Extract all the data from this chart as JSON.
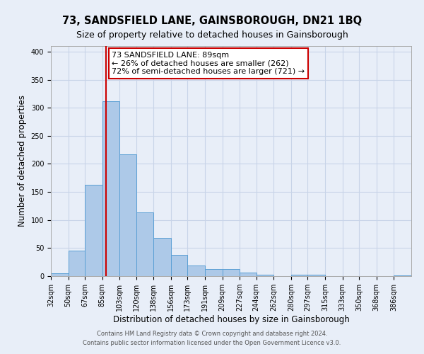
{
  "title": "73, SANDSFIELD LANE, GAINSBOROUGH, DN21 1BQ",
  "subtitle": "Size of property relative to detached houses in Gainsborough",
  "xlabel": "Distribution of detached houses by size in Gainsborough",
  "ylabel": "Number of detached properties",
  "bin_labels": [
    "32sqm",
    "50sqm",
    "67sqm",
    "85sqm",
    "103sqm",
    "120sqm",
    "138sqm",
    "156sqm",
    "173sqm",
    "191sqm",
    "209sqm",
    "227sqm",
    "244sqm",
    "262sqm",
    "280sqm",
    "297sqm",
    "315sqm",
    "333sqm",
    "350sqm",
    "368sqm",
    "386sqm"
  ],
  "bin_edges": [
    32,
    50,
    67,
    85,
    103,
    120,
    138,
    156,
    173,
    191,
    209,
    227,
    244,
    262,
    280,
    297,
    315,
    333,
    350,
    368,
    386,
    404
  ],
  "bar_heights": [
    5,
    46,
    163,
    312,
    217,
    114,
    68,
    38,
    19,
    13,
    13,
    6,
    2,
    0,
    2,
    2,
    0,
    0,
    0,
    0,
    1
  ],
  "bar_color": "#adc9e8",
  "bar_edge_color": "#5a9fd4",
  "property_size": 89,
  "red_line_color": "#cc0000",
  "annotation_line1": "73 SANDSFIELD LANE: 89sqm",
  "annotation_line2": "← 26% of detached houses are smaller (262)",
  "annotation_line3": "72% of semi-detached houses are larger (721) →",
  "annotation_box_color": "#ffffff",
  "annotation_box_edge_color": "#cc0000",
  "ylim": [
    0,
    410
  ],
  "yticks": [
    0,
    50,
    100,
    150,
    200,
    250,
    300,
    350,
    400
  ],
  "grid_color": "#c8d4e8",
  "background_color": "#e8eef8",
  "footer_line1": "Contains HM Land Registry data © Crown copyright and database right 2024.",
  "footer_line2": "Contains public sector information licensed under the Open Government Licence v3.0.",
  "title_fontsize": 10.5,
  "subtitle_fontsize": 9,
  "xlabel_fontsize": 8.5,
  "ylabel_fontsize": 8.5,
  "tick_fontsize": 7,
  "annotation_fontsize": 8,
  "footer_fontsize": 6
}
